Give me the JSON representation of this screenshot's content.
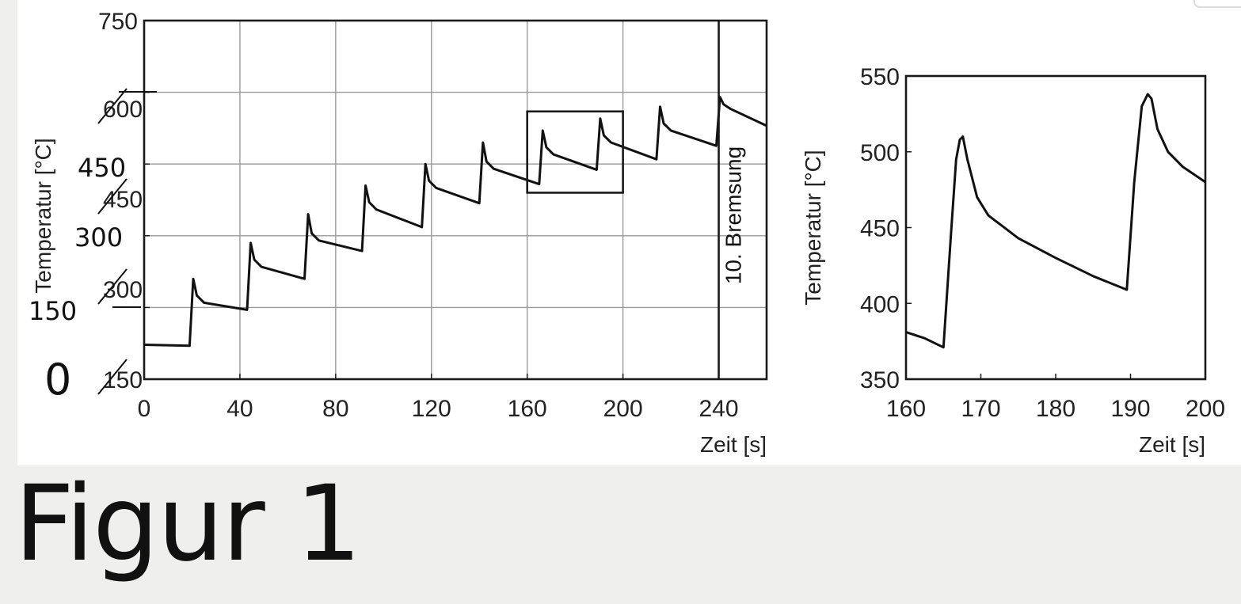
{
  "caption": "Figur 1",
  "chart_data": [
    {
      "type": "line",
      "xlabel": "Zeit [s]",
      "ylabel": "Temperatur [°C]",
      "xlim": [
        0,
        260
      ],
      "ylim": [
        0,
        750
      ],
      "xticks": [
        0,
        40,
        80,
        120,
        160,
        200,
        240
      ],
      "yticks": [
        0,
        150,
        300,
        450,
        600,
        750
      ],
      "grid": true,
      "marker": {
        "x": 240,
        "label": "10. Bremsung"
      },
      "zoom_box": {
        "x": [
          160,
          200
        ],
        "y": [
          390,
          560
        ]
      },
      "series": [
        {
          "x": [
            0,
            19,
            20.5,
            22,
            25,
            43,
            44.5,
            46,
            49,
            67,
            68.5,
            70,
            73,
            91,
            92.5,
            94,
            97,
            116,
            117.5,
            119,
            122,
            140,
            141.5,
            143,
            146,
            165,
            166.5,
            168,
            171,
            189,
            190.5,
            192,
            195,
            214,
            215.5,
            217,
            220,
            239,
            240.5,
            242,
            245,
            260
          ],
          "y": [
            72,
            70,
            210,
            175,
            160,
            145,
            285,
            250,
            235,
            210,
            345,
            305,
            290,
            268,
            405,
            370,
            355,
            318,
            450,
            415,
            400,
            368,
            495,
            455,
            440,
            408,
            520,
            485,
            470,
            438,
            545,
            510,
            495,
            460,
            570,
            535,
            520,
            488,
            590,
            575,
            565,
            530
          ]
        }
      ]
    },
    {
      "type": "line",
      "xlabel": "Zeit [s]",
      "ylabel": "Temperatur [°C]",
      "xlim": [
        160,
        200
      ],
      "ylim": [
        350,
        550
      ],
      "xticks": [
        160,
        170,
        180,
        190,
        200
      ],
      "yticks": [
        350,
        400,
        450,
        500,
        550
      ],
      "grid": false,
      "series": [
        {
          "x": [
            160,
            162.5,
            165,
            166,
            166.7,
            167.2,
            167.6,
            168.2,
            169.5,
            171,
            175,
            180,
            185,
            189.5,
            190.5,
            191.5,
            192.3,
            192.8,
            193.6,
            195,
            197,
            200
          ],
          "y": [
            381,
            377,
            371,
            445,
            495,
            508,
            510,
            495,
            470,
            458,
            443,
            430,
            418,
            409,
            480,
            530,
            538,
            535,
            515,
            500,
            490,
            480
          ]
        }
      ]
    }
  ],
  "overlay_labels": {
    "left": [
      "0",
      "150",
      "300",
      "450"
    ],
    "struck": [
      "150",
      "300",
      "450",
      "600"
    ]
  }
}
